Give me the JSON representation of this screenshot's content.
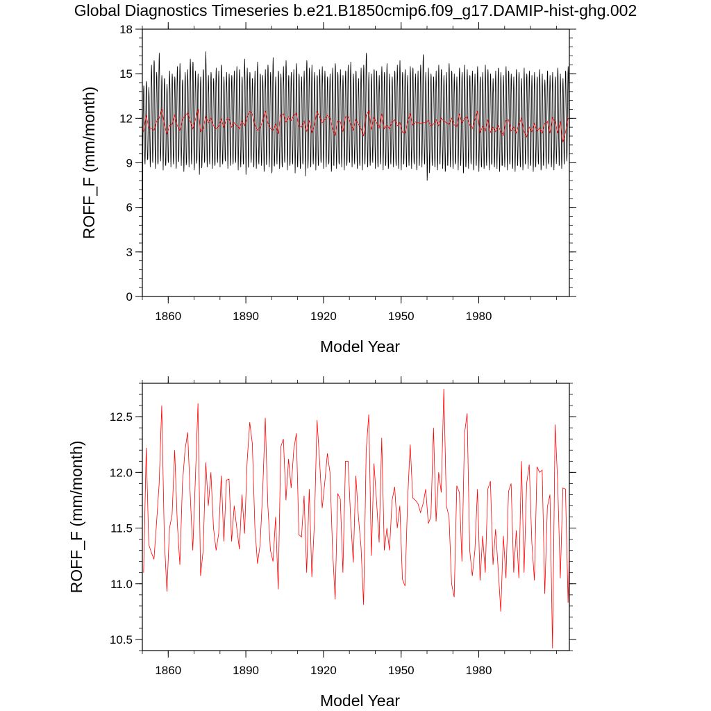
{
  "title": "Global Diagnostics Timeseries b.e21.B1850cmip6.f09_g17.DAMIP-hist-ghg.002",
  "colors": {
    "monthly": "#000000",
    "annual": "#ff0000",
    "axis": "#000000"
  },
  "chart_data": [
    {
      "type": "line",
      "xlabel": "Model Year",
      "ylabel": "ROFF_F (mm/month)",
      "xlim": [
        1850,
        2015
      ],
      "ylim": [
        0,
        18
      ],
      "xticks": [
        "1860",
        "1890",
        "1920",
        "1950",
        "1980"
      ],
      "yticks": [
        "0",
        "3",
        "6",
        "9",
        "12",
        "15",
        "18"
      ],
      "grid": false,
      "series": [
        {
          "kind": "monthly",
          "note_visible": "seasonal cycle, monthly values",
          "first_year": 1850,
          "first_value": 0.0,
          "annual_peaks": [
            14.2,
            14.5,
            14.1,
            15.6,
            15.9,
            15.1,
            16.4,
            14.9,
            14.7,
            14.3,
            15.2,
            15.0,
            14.8,
            15.5,
            15.7,
            14.6,
            15.1,
            15.3,
            16.0,
            15.8,
            15.2,
            15.0,
            14.8,
            15.3,
            16.5,
            14.9,
            15.1,
            14.7,
            15.4,
            15.2,
            15.6,
            14.8,
            15.1,
            15.0,
            14.9,
            15.2,
            15.5,
            15.3,
            14.8,
            16.0,
            15.4,
            15.1,
            14.7,
            15.2,
            15.8,
            15.0,
            14.9,
            15.3,
            15.6,
            15.1,
            16.1,
            14.8,
            15.2,
            15.0,
            15.5,
            15.9,
            14.9,
            15.1,
            15.3,
            15.7,
            15.0,
            14.8,
            15.2,
            15.9,
            15.4,
            15.6,
            15.1,
            14.9,
            15.3,
            15.5,
            15.2,
            14.8,
            15.0,
            15.4,
            15.7,
            15.1,
            15.3,
            14.9,
            15.2,
            15.6,
            15.8,
            15.0,
            15.2,
            14.7,
            15.4,
            15.6,
            16.4,
            15.1,
            15.0,
            15.3,
            15.2,
            14.9,
            15.5,
            15.1,
            15.7,
            15.0,
            14.8,
            15.2,
            15.6,
            15.9,
            15.1,
            15.3,
            14.9,
            15.5,
            15.4,
            15.0,
            15.2,
            15.6,
            16.3,
            15.1,
            15.4,
            15.0,
            14.8,
            15.2,
            15.6,
            15.3,
            14.9,
            15.1,
            15.7,
            15.2,
            15.0,
            14.8,
            15.4,
            15.1,
            15.6,
            15.3,
            14.9,
            15.2,
            15.0,
            15.5,
            14.8,
            15.1,
            15.6,
            15.3,
            15.0,
            14.7,
            15.2,
            15.4,
            15.1,
            14.9,
            15.5,
            15.2,
            15.0,
            14.8,
            15.3,
            15.1,
            14.7,
            15.4,
            15.0,
            15.2,
            14.9,
            15.1,
            14.8,
            15.3,
            15.0,
            14.6,
            15.2,
            14.9,
            15.1,
            14.8,
            15.4,
            15.0,
            14.7,
            15.2,
            15.5
          ],
          "annual_troughs": [
            8.8,
            8.9,
            9.2,
            8.7,
            9.0,
            8.6,
            8.9,
            9.1,
            8.5,
            8.8,
            9.0,
            8.7,
            8.9,
            8.6,
            9.1,
            8.8,
            8.4,
            9.0,
            8.7,
            8.9,
            8.5,
            9.1,
            8.2,
            8.8,
            9.0,
            8.7,
            8.9,
            8.6,
            8.8,
            9.0,
            8.7,
            8.9,
            9.1,
            8.6,
            8.8,
            8.9,
            9.0,
            8.5,
            8.7,
            8.9,
            8.2,
            8.8,
            9.0,
            8.7,
            8.6,
            8.9,
            8.8,
            8.4,
            9.0,
            8.7,
            8.3,
            8.8,
            8.9,
            8.6,
            8.7,
            9.0,
            8.5,
            8.8,
            8.9,
            8.3,
            8.7,
            8.6,
            8.9,
            8.1,
            8.8,
            8.7,
            8.9,
            8.5,
            8.8,
            9.0,
            8.6,
            8.7,
            8.9,
            8.4,
            8.8,
            8.6,
            8.9,
            8.7,
            8.5,
            8.8,
            9.0,
            8.7,
            8.9,
            8.6,
            8.8,
            8.5,
            8.9,
            8.7,
            8.8,
            9.0,
            8.6,
            8.7,
            8.9,
            8.5,
            8.8,
            8.6,
            8.9,
            8.7,
            8.8,
            8.6,
            8.5,
            8.9,
            8.7,
            8.8,
            8.6,
            8.9,
            8.5,
            8.8,
            8.7,
            8.9,
            7.8,
            8.6,
            8.8,
            8.7,
            8.5,
            8.9,
            8.6,
            8.4,
            8.8,
            8.7,
            8.6,
            8.9,
            8.5,
            8.8,
            8.3,
            8.7,
            8.6,
            8.9,
            8.5,
            8.8,
            8.4,
            8.7,
            8.6,
            8.8,
            8.5,
            8.9,
            8.7,
            8.6,
            8.4,
            8.8,
            8.7,
            8.5,
            8.9,
            8.6,
            8.4,
            8.8,
            8.7,
            8.5,
            8.9,
            8.6,
            8.8,
            8.4,
            8.7,
            8.9,
            8.5,
            8.8,
            8.6,
            8.9,
            8.7,
            8.5,
            9.3,
            8.8,
            8.6,
            8.9,
            9.1
          ]
        },
        {
          "kind": "annual",
          "years_start": 1850,
          "values": [
            11.1,
            12.2,
            11.35,
            11.3,
            11.2,
            11.8,
            12.0,
            12.6,
            11.6,
            10.95,
            11.5,
            11.6,
            12.2,
            11.5,
            11.2,
            11.9,
            12.2,
            12.35,
            11.8,
            11.3,
            11.9,
            12.6,
            11.1,
            11.3,
            12.1,
            11.7,
            12.0,
            11.5,
            11.3,
            11.45,
            11.95,
            11.4,
            11.95,
            11.95,
            11.4,
            11.7,
            11.5,
            11.3,
            11.8,
            11.5,
            12.1,
            12.45,
            12.3,
            11.5,
            11.2,
            11.35,
            11.8,
            12.5,
            11.7,
            11.3,
            11.2,
            11.6,
            10.95,
            12.2,
            12.3,
            11.75,
            12.1,
            11.85,
            12.2,
            12.35,
            11.45,
            11.4,
            11.8,
            11.1,
            11.85,
            11.05,
            11.55,
            12.45,
            12.1,
            11.7,
            11.9,
            12.2,
            12.0,
            11.3,
            10.85,
            11.8,
            11.75,
            11.1,
            12.1,
            12.1,
            11.6,
            11.2,
            11.9,
            11.6,
            11.3,
            10.8,
            12.2,
            12.5,
            11.25,
            12.05,
            11.7,
            11.35,
            12.3,
            11.3,
            11.5,
            11.3,
            11.75,
            11.9,
            11.5,
            11.7,
            11.05,
            11.0,
            11.75,
            12.3,
            11.55,
            11.75,
            11.7,
            11.65,
            11.7,
            11.7,
            11.85,
            11.5,
            11.6,
            11.9,
            11.5,
            12.0,
            11.8,
            11.7,
            11.6,
            12.0,
            11.55,
            11.45,
            12.3,
            11.7,
            11.95,
            12.1,
            11.55,
            11.3,
            11.9,
            12.5,
            11.05,
            11.45,
            11.15,
            11.9,
            11.05,
            11.4,
            11.1,
            11.5,
            11.1,
            10.85,
            11.85,
            11.9,
            11.15,
            11.4,
            11.0,
            11.6,
            12.0,
            11.1,
            10.75,
            11.4,
            11.1,
            11.65,
            11.15,
            11.35,
            11.0,
            11.65,
            11.8,
            11.0,
            12.05,
            11.75,
            11.0,
            11.8,
            10.4,
            11.05,
            12.0,
            12.05,
            12.45,
            11.05,
            11.75,
            10.9,
            11.1,
            11.25,
            11.75,
            11.7,
            11.25,
            11.9,
            11.9
          ]
        }
      ]
    },
    {
      "type": "line",
      "xlabel": "Model Year",
      "ylabel": "ROFF_F (mm/month)",
      "xlim": [
        1850,
        2015
      ],
      "ylim": [
        10.4,
        12.8
      ],
      "xticks": [
        "1860",
        "1890",
        "1920",
        "1950",
        "1980"
      ],
      "yticks": [
        "10.5",
        "11.0",
        "11.5",
        "12.0",
        "12.5"
      ],
      "grid": false,
      "series": [
        {
          "kind": "annual",
          "years_start": 1850,
          "values": [
            11.1,
            12.22,
            11.35,
            11.28,
            11.22,
            11.55,
            11.9,
            12.6,
            11.4,
            10.93,
            11.5,
            11.62,
            12.2,
            11.55,
            11.17,
            11.9,
            12.2,
            12.36,
            11.8,
            11.3,
            11.95,
            12.62,
            11.07,
            11.3,
            12.09,
            11.7,
            12.0,
            11.5,
            11.3,
            11.45,
            11.97,
            11.38,
            11.93,
            11.94,
            11.38,
            11.7,
            11.5,
            11.31,
            11.8,
            11.45,
            12.1,
            12.45,
            12.26,
            11.5,
            11.18,
            11.35,
            11.83,
            12.49,
            11.7,
            11.3,
            11.2,
            11.6,
            10.95,
            12.23,
            12.3,
            11.75,
            12.12,
            11.86,
            12.2,
            12.35,
            11.44,
            11.42,
            11.79,
            11.1,
            11.85,
            11.06,
            11.55,
            12.47,
            12.1,
            11.68,
            11.91,
            12.17,
            12.0,
            11.31,
            10.86,
            11.81,
            11.76,
            11.1,
            12.1,
            12.1,
            11.58,
            11.19,
            11.97,
            11.6,
            11.33,
            10.81,
            12.2,
            12.52,
            11.25,
            12.08,
            11.74,
            11.37,
            12.31,
            11.3,
            11.5,
            11.3,
            11.75,
            11.87,
            11.5,
            11.7,
            11.04,
            10.98,
            11.75,
            12.25,
            11.77,
            11.75,
            11.72,
            11.64,
            11.72,
            11.85,
            11.54,
            11.6,
            12.4,
            11.56,
            12.0,
            11.82,
            12.75,
            11.7,
            11.6,
            11.0,
            10.88,
            11.88,
            11.82,
            11.2,
            12.35,
            12.53,
            11.3,
            11.07,
            11.3,
            11.85,
            11.03,
            11.43,
            11.1,
            11.85,
            11.92,
            11.17,
            11.49,
            11.13,
            10.75,
            11.43,
            11.05,
            11.83,
            11.9,
            11.1,
            11.48,
            11.05,
            12.1,
            11.1,
            11.9,
            12.07,
            11.37,
            11.03,
            12.05,
            12.0,
            12.02,
            10.91,
            11.69,
            11.8,
            10.42,
            12.43,
            11.9,
            11.05,
            11.86,
            11.85,
            10.83,
            11.72,
            11.69,
            11.23,
            11.35,
            11.9,
            11.98
          ]
        }
      ]
    }
  ]
}
